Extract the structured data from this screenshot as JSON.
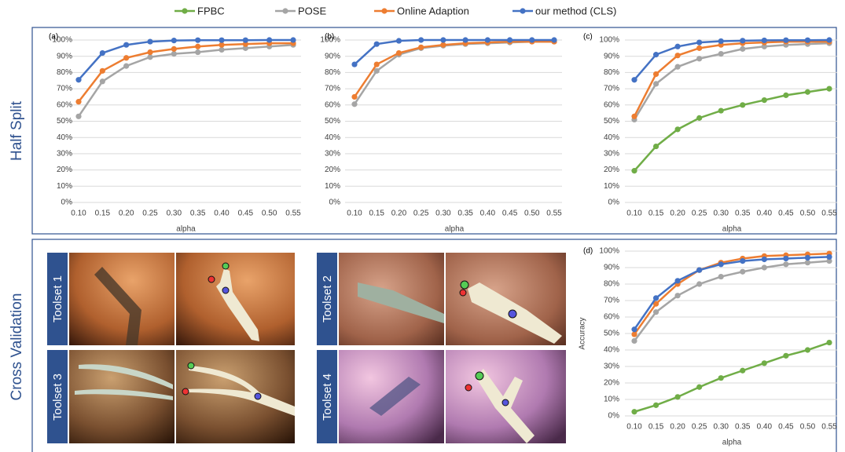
{
  "sections": [
    "Half Split",
    "Cross Validation"
  ],
  "toolsets": [
    "Toolset 1",
    "Toolset 2",
    "Toolset 3",
    "Toolset 4"
  ],
  "chart_data": [
    {
      "type": "line",
      "title": "(a)",
      "x_label": "alpha",
      "categories": [
        "0.10",
        "0.15",
        "0.20",
        "0.25",
        "0.30",
        "0.35",
        "0.40",
        "0.45",
        "0.50",
        "0.55"
      ],
      "ylim": [
        0,
        100
      ],
      "yticks": [
        {
          "value": 0,
          "label": "0%"
        },
        {
          "value": 10,
          "label": "10%"
        },
        {
          "value": 20,
          "label": "20%"
        },
        {
          "value": 30,
          "label": "30%"
        },
        {
          "value": 40,
          "label": "40%"
        },
        {
          "value": 50,
          "label": "50%"
        },
        {
          "value": 60,
          "label": "60%"
        },
        {
          "value": 70,
          "label": "70%"
        },
        {
          "value": 80,
          "label": "80%"
        },
        {
          "value": 90,
          "label": "90%"
        },
        {
          "value": 100,
          "label": "100%"
        }
      ],
      "grid": true,
      "series": [
        {
          "name": "POSE",
          "color": "#a5a5a5",
          "values": [
            53,
            74.5,
            84,
            89.5,
            91.5,
            92.5,
            94,
            95,
            96,
            97
          ]
        },
        {
          "name": "Online Adaption",
          "color": "#ed7d31",
          "values": [
            62,
            81,
            89,
            92.5,
            94.5,
            96,
            97,
            97.5,
            98,
            98
          ]
        },
        {
          "name": "our method (CLS)",
          "color": "#4472c4",
          "values": [
            75.5,
            92,
            97,
            99,
            99.7,
            99.9,
            99.9,
            99.9,
            100,
            100
          ]
        }
      ]
    },
    {
      "type": "line",
      "title": "(b)",
      "x_label": "alpha",
      "categories": [
        "0.10",
        "0.15",
        "0.20",
        "0.25",
        "0.30",
        "0.35",
        "0.40",
        "0.45",
        "0.50",
        "0.55"
      ],
      "ylim": [
        0,
        100
      ],
      "yticks": [
        {
          "value": 0,
          "label": "0%"
        },
        {
          "value": 10,
          "label": "10%"
        },
        {
          "value": 20,
          "label": "20%"
        },
        {
          "value": 30,
          "label": "30%"
        },
        {
          "value": 40,
          "label": "40%"
        },
        {
          "value": 50,
          "label": "50%"
        },
        {
          "value": 60,
          "label": "60%"
        },
        {
          "value": 70,
          "label": "70%"
        },
        {
          "value": 80,
          "label": "80%"
        },
        {
          "value": 90,
          "label": "90%"
        },
        {
          "value": 100,
          "label": "100%"
        }
      ],
      "grid": true,
      "series": [
        {
          "name": "POSE",
          "color": "#a5a5a5",
          "values": [
            60.5,
            81,
            91,
            95,
            96.5,
            97.5,
            98,
            98.5,
            99,
            99
          ]
        },
        {
          "name": "Online Adaption",
          "color": "#ed7d31",
          "values": [
            65,
            85,
            92,
            95.5,
            97,
            98,
            98.5,
            99,
            99,
            99
          ]
        },
        {
          "name": "our method (CLS)",
          "color": "#4472c4",
          "values": [
            85,
            97.5,
            99.5,
            100,
            100,
            100,
            100,
            100,
            100,
            100
          ]
        }
      ]
    },
    {
      "type": "line",
      "title": "(c)",
      "x_label": "alpha",
      "categories": [
        "0.10",
        "0.15",
        "0.20",
        "0.25",
        "0.30",
        "0.35",
        "0.40",
        "0.45",
        "0.50",
        "0.55"
      ],
      "ylim": [
        0,
        100
      ],
      "yticks": [
        {
          "value": 0,
          "label": "0%"
        },
        {
          "value": 10,
          "label": "10%"
        },
        {
          "value": 20,
          "label": "20%"
        },
        {
          "value": 30,
          "label": "30%"
        },
        {
          "value": 40,
          "label": "40%"
        },
        {
          "value": 50,
          "label": "50%"
        },
        {
          "value": 60,
          "label": "60%"
        },
        {
          "value": 70,
          "label": "70%"
        },
        {
          "value": 80,
          "label": "80%"
        },
        {
          "value": 90,
          "label": "90%"
        },
        {
          "value": 100,
          "label": "100%"
        }
      ],
      "grid": true,
      "series": [
        {
          "name": "FPBC",
          "color": "#70ad47",
          "values": [
            19.5,
            34.5,
            45,
            52,
            56.5,
            60,
            63,
            66,
            68,
            70
          ]
        },
        {
          "name": "POSE",
          "color": "#a5a5a5",
          "values": [
            51,
            73,
            83.5,
            88.5,
            91.5,
            94.5,
            96,
            97,
            97.5,
            98
          ]
        },
        {
          "name": "Online Adaption",
          "color": "#ed7d31",
          "values": [
            53,
            79,
            90.5,
            95,
            97,
            98,
            98.5,
            99,
            99,
            99
          ]
        },
        {
          "name": "our method (CLS)",
          "color": "#4472c4",
          "values": [
            75.5,
            91,
            96,
            98.5,
            99.3,
            99.6,
            99.8,
            99.9,
            99.9,
            100
          ]
        }
      ]
    },
    {
      "type": "line",
      "title": "(d)",
      "x_label": "alpha",
      "y_label": "Accuracy",
      "categories": [
        "0.10",
        "0.15",
        "0.20",
        "0.25",
        "0.30",
        "0.35",
        "0.40",
        "0.45",
        "0.50",
        "0.55"
      ],
      "ylim": [
        0,
        100
      ],
      "yticks": [
        {
          "value": 0,
          "label": "0%"
        },
        {
          "value": 10,
          "label": "10%"
        },
        {
          "value": 20,
          "label": "20%"
        },
        {
          "value": 30,
          "label": "30%"
        },
        {
          "value": 40,
          "label": "40%"
        },
        {
          "value": 50,
          "label": "50%"
        },
        {
          "value": 60,
          "label": "60%"
        },
        {
          "value": 70,
          "label": "70%"
        },
        {
          "value": 80,
          "label": "80%"
        },
        {
          "value": 90,
          "label": "90%"
        },
        {
          "value": 100,
          "label": "100%"
        }
      ],
      "grid": true,
      "series": [
        {
          "name": "FPBC",
          "color": "#70ad47",
          "values": [
            2.5,
            6.5,
            11.5,
            17.5,
            23,
            27.5,
            32,
            36.5,
            40,
            44.5
          ]
        },
        {
          "name": "POSE",
          "color": "#a5a5a5",
          "values": [
            45.5,
            63,
            73,
            80,
            84.5,
            87.5,
            90,
            92,
            93,
            94
          ]
        },
        {
          "name": "Online Adaption",
          "color": "#ed7d31",
          "values": [
            49.5,
            68,
            80,
            88.5,
            93,
            95.5,
            97,
            97.5,
            98,
            98.5
          ]
        },
        {
          "name": "our method (CLS)",
          "color": "#4472c4",
          "values": [
            52.5,
            71.5,
            82,
            88.5,
            92,
            94,
            95,
            95.5,
            96,
            96.5
          ]
        }
      ]
    }
  ]
}
